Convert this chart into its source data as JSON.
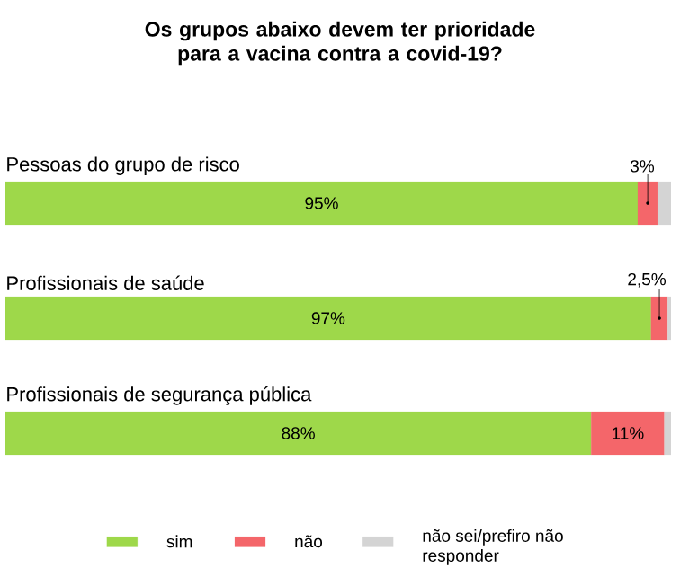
{
  "chart_data": {
    "type": "bar",
    "orientation": "horizontal",
    "stacked": true,
    "title": "Os grupos abaixo devem ter prioridade para a vacina contra a covid-19?",
    "categories": [
      "Pessoas do grupo de risco",
      "Profissionais de saúde",
      "Profissionais de segurança pública"
    ],
    "series": [
      {
        "name": "sim",
        "color": "#9ed84a",
        "values": [
          95,
          97,
          88
        ],
        "value_labels": [
          "95%",
          "97%",
          "88%"
        ]
      },
      {
        "name": "não",
        "color": "#f4666a",
        "values": [
          3,
          2.5,
          11
        ],
        "value_labels": [
          "3%",
          "2,5%",
          "11%"
        ]
      },
      {
        "name": "não sei/prefiro não responder",
        "color": "#d4d4d4",
        "values": [
          2,
          0.5,
          1
        ],
        "value_labels": [
          null,
          null,
          null
        ]
      }
    ],
    "xlim": [
      0,
      100
    ],
    "tick_labels": false,
    "legend": "bottom"
  }
}
